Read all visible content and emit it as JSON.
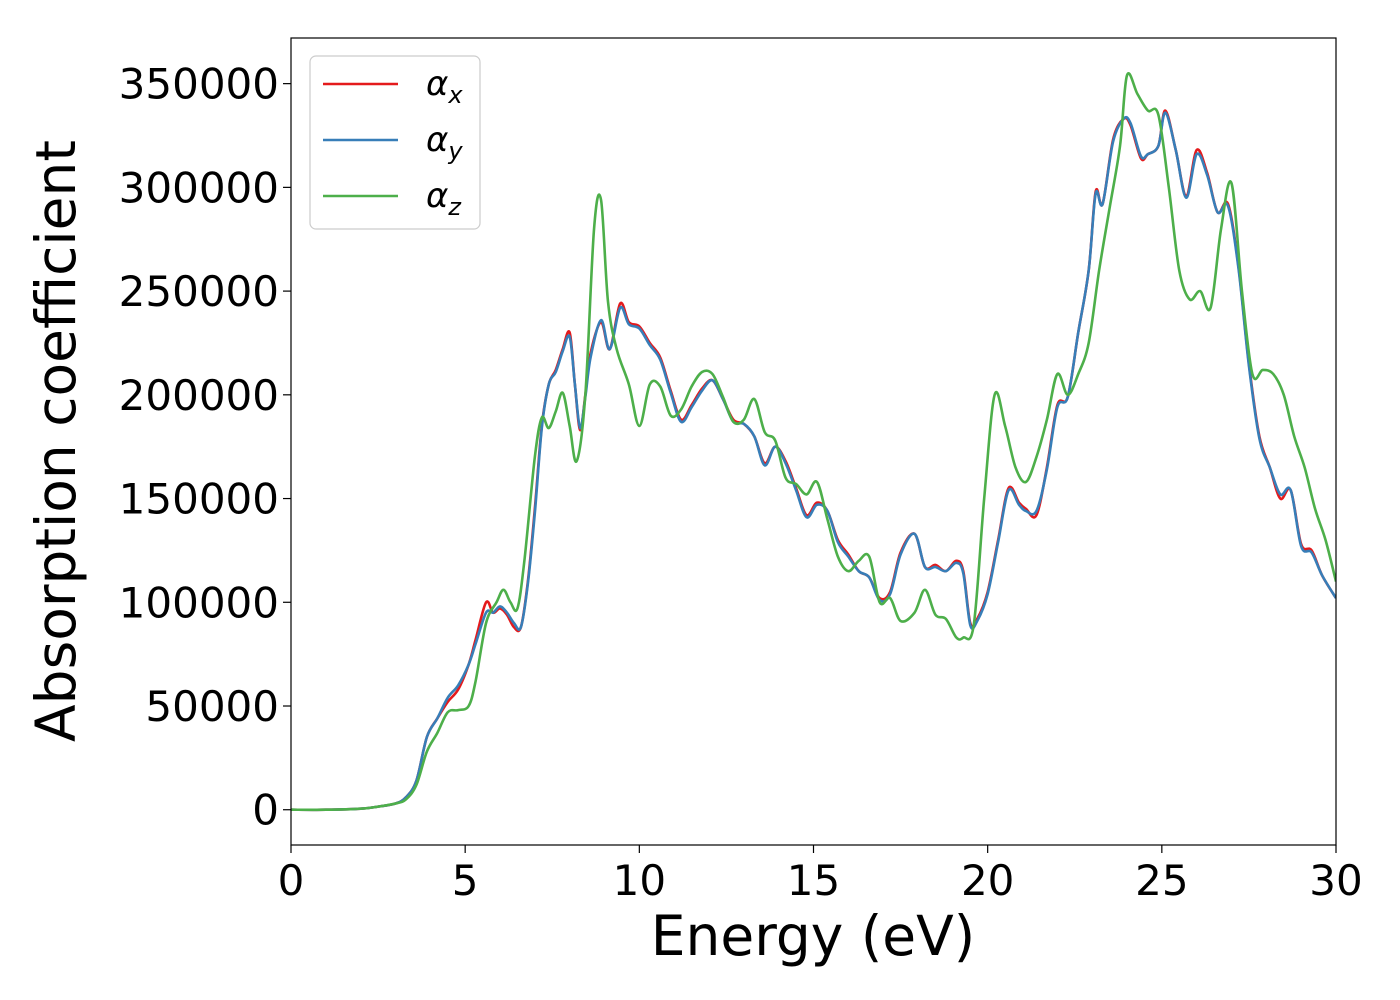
{
  "chart_data": {
    "type": "line",
    "title": "",
    "xlabel": "Energy (eV)",
    "ylabel": "Absorption coefficient",
    "xlim": [
      0,
      30
    ],
    "ylim": [
      -17000,
      372000
    ],
    "xticks": [
      0,
      5,
      10,
      15,
      20,
      25,
      30
    ],
    "yticks": [
      0,
      50000,
      100000,
      150000,
      200000,
      250000,
      300000,
      350000
    ],
    "grid": false,
    "legend_position": "top-left",
    "series": [
      {
        "name": "αx",
        "name_main": "α",
        "name_sub": "x",
        "color": "#e41a1c",
        "x": [
          0,
          1,
          2,
          2.5,
          3,
          3.3,
          3.6,
          3.9,
          4.2,
          4.5,
          4.8,
          5.1,
          5.3,
          5.6,
          5.8,
          6.0,
          6.2,
          6.4,
          6.6,
          6.8,
          7.0,
          7.2,
          7.4,
          7.6,
          7.8,
          8.0,
          8.15,
          8.3,
          8.45,
          8.6,
          8.9,
          9.15,
          9.45,
          9.7,
          10.0,
          10.3,
          10.6,
          10.9,
          11.2,
          11.5,
          11.8,
          12.1,
          12.4,
          12.7,
          13.0,
          13.3,
          13.6,
          13.9,
          14.2,
          14.5,
          14.8,
          15.1,
          15.4,
          15.7,
          16.0,
          16.3,
          16.6,
          16.9,
          17.2,
          17.5,
          17.9,
          18.2,
          18.5,
          18.8,
          19.1,
          19.3,
          19.5,
          19.7,
          20.0,
          20.3,
          20.6,
          20.9,
          21.1,
          21.4,
          21.7,
          22.0,
          22.3,
          22.6,
          22.9,
          23.1,
          23.3,
          23.6,
          23.9,
          24.1,
          24.4,
          24.6,
          24.9,
          25.1,
          25.4,
          25.7,
          26.0,
          26.3,
          26.6,
          26.9,
          27.2,
          27.5,
          27.8,
          28.1,
          28.4,
          28.7,
          29.0,
          29.3,
          29.6,
          30.0
        ],
        "y": [
          0,
          0,
          500,
          1500,
          3000,
          6000,
          14000,
          35000,
          44000,
          52000,
          58000,
          70000,
          82000,
          100000,
          95000,
          97000,
          94000,
          88000,
          88000,
          110000,
          145000,
          185000,
          205000,
          212000,
          222000,
          230000,
          205000,
          183000,
          200000,
          220000,
          235000,
          222000,
          244000,
          235000,
          233000,
          225000,
          218000,
          202000,
          188000,
          195000,
          203000,
          207000,
          198000,
          188000,
          186000,
          180000,
          167000,
          175000,
          168000,
          155000,
          142000,
          148000,
          144000,
          130000,
          123000,
          115000,
          112000,
          102000,
          105000,
          124000,
          133000,
          117000,
          118000,
          115000,
          120000,
          115000,
          90000,
          92000,
          105000,
          130000,
          155000,
          148000,
          145000,
          142000,
          165000,
          195000,
          199000,
          230000,
          260000,
          298000,
          292000,
          323000,
          333000,
          330000,
          314000,
          316000,
          320000,
          337000,
          318000,
          296000,
          318000,
          307000,
          288000,
          292000,
          262000,
          215000,
          180000,
          165000,
          150000,
          154000,
          128000,
          125000,
          113000,
          102000
        ]
      },
      {
        "name": "αy",
        "name_main": "α",
        "name_sub": "y",
        "color": "#377eb8",
        "x": [
          0,
          1,
          2,
          2.5,
          3,
          3.3,
          3.6,
          3.9,
          4.2,
          4.5,
          4.8,
          5.1,
          5.3,
          5.6,
          5.8,
          6.0,
          6.2,
          6.4,
          6.6,
          6.8,
          7.0,
          7.2,
          7.4,
          7.6,
          7.8,
          8.0,
          8.15,
          8.3,
          8.45,
          8.6,
          8.9,
          9.15,
          9.45,
          9.7,
          10.0,
          10.3,
          10.6,
          10.9,
          11.2,
          11.5,
          11.8,
          12.1,
          12.4,
          12.7,
          13.0,
          13.3,
          13.6,
          13.9,
          14.2,
          14.5,
          14.8,
          15.1,
          15.4,
          15.7,
          16.0,
          16.3,
          16.6,
          16.9,
          17.2,
          17.5,
          17.9,
          18.2,
          18.5,
          18.8,
          19.1,
          19.3,
          19.5,
          19.7,
          20.0,
          20.3,
          20.6,
          20.9,
          21.1,
          21.4,
          21.7,
          22.0,
          22.3,
          22.6,
          22.9,
          23.1,
          23.3,
          23.6,
          23.9,
          24.1,
          24.4,
          24.6,
          24.9,
          25.1,
          25.4,
          25.7,
          26.0,
          26.3,
          26.6,
          26.9,
          27.2,
          27.5,
          27.8,
          28.1,
          28.4,
          28.7,
          29.0,
          29.3,
          29.6,
          30.0
        ],
        "y": [
          0,
          0,
          500,
          1500,
          3000,
          6000,
          14000,
          35000,
          44000,
          54000,
          60000,
          70000,
          80000,
          95000,
          95000,
          98000,
          95000,
          90000,
          88000,
          109000,
          143000,
          184000,
          205000,
          211000,
          221000,
          228000,
          205000,
          184000,
          199000,
          218000,
          236000,
          222000,
          242000,
          234000,
          232000,
          224000,
          217000,
          201000,
          187000,
          194000,
          202000,
          207000,
          198000,
          187000,
          186000,
          180000,
          166000,
          175000,
          167000,
          154000,
          141000,
          147000,
          144000,
          129000,
          122000,
          115000,
          112000,
          101000,
          104000,
          123000,
          133000,
          117000,
          117000,
          115000,
          119000,
          114000,
          89000,
          91000,
          104000,
          129000,
          154000,
          147000,
          144000,
          144000,
          164000,
          194000,
          199000,
          230000,
          260000,
          297000,
          292000,
          322000,
          333000,
          331000,
          315000,
          316000,
          320000,
          336000,
          318000,
          295000,
          316000,
          306000,
          288000,
          291000,
          261000,
          214000,
          179000,
          165000,
          152000,
          154000,
          127000,
          124000,
          113000,
          102000
        ]
      },
      {
        "name": "αz",
        "name_main": "α",
        "name_sub": "z",
        "color": "#4daf4a",
        "x": [
          0,
          1,
          2,
          2.5,
          3,
          3.3,
          3.6,
          3.9,
          4.2,
          4.5,
          4.8,
          5.1,
          5.3,
          5.6,
          5.9,
          6.1,
          6.3,
          6.5,
          6.7,
          7.0,
          7.2,
          7.4,
          7.6,
          7.8,
          8.0,
          8.2,
          8.45,
          8.7,
          8.9,
          9.1,
          9.35,
          9.7,
          10.0,
          10.3,
          10.6,
          10.9,
          11.2,
          11.5,
          11.8,
          12.1,
          12.4,
          12.7,
          13.0,
          13.3,
          13.6,
          13.9,
          14.2,
          14.5,
          14.8,
          15.1,
          15.4,
          15.7,
          16.0,
          16.3,
          16.6,
          16.9,
          17.2,
          17.5,
          17.9,
          18.2,
          18.5,
          18.8,
          19.1,
          19.3,
          19.6,
          19.9,
          20.2,
          20.5,
          20.8,
          21.1,
          21.4,
          21.7,
          22.0,
          22.3,
          22.6,
          22.9,
          23.2,
          23.5,
          23.8,
          24.0,
          24.3,
          24.6,
          24.9,
          25.2,
          25.5,
          25.8,
          26.1,
          26.4,
          26.7,
          27.0,
          27.3,
          27.6,
          27.9,
          28.2,
          28.5,
          28.8,
          29.1,
          29.4,
          29.7,
          30.0
        ],
        "y": [
          0,
          0,
          500,
          1500,
          3000,
          5000,
          12000,
          28000,
          37000,
          47000,
          48000,
          50000,
          62000,
          90000,
          100000,
          106000,
          100000,
          97000,
          120000,
          170000,
          189000,
          184000,
          192000,
          201000,
          185000,
          168000,
          200000,
          280000,
          294000,
          245000,
          222000,
          205000,
          185000,
          205000,
          204000,
          190000,
          193000,
          204000,
          211000,
          210000,
          199000,
          187000,
          188000,
          198000,
          182000,
          178000,
          160000,
          157000,
          152000,
          158000,
          140000,
          122000,
          115000,
          120000,
          122000,
          100000,
          102000,
          91000,
          95000,
          106000,
          94000,
          92000,
          83000,
          83000,
          89000,
          150000,
          200000,
          185000,
          165000,
          158000,
          170000,
          188000,
          210000,
          200000,
          210000,
          225000,
          260000,
          290000,
          320000,
          354000,
          345000,
          337000,
          335000,
          300000,
          260000,
          246000,
          250000,
          242000,
          280000,
          302000,
          250000,
          210000,
          212000,
          210000,
          200000,
          180000,
          165000,
          145000,
          130000,
          110000
        ]
      }
    ]
  }
}
